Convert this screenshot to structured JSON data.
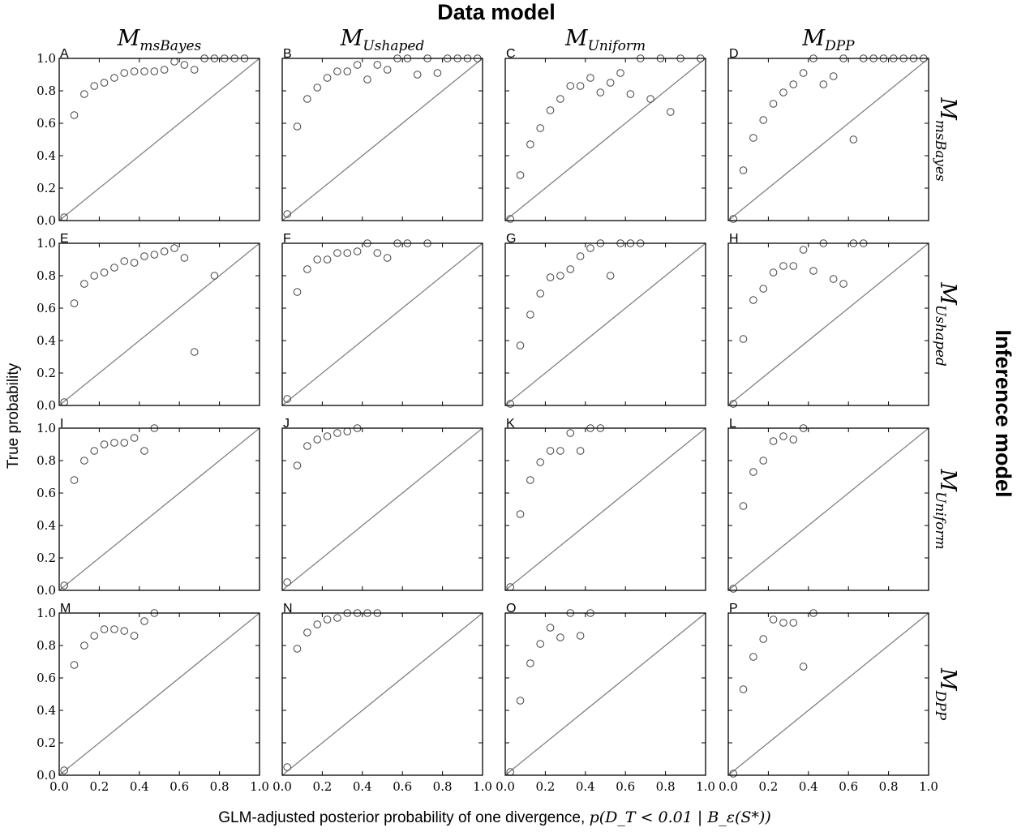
{
  "figure": {
    "col_header": "Data model",
    "row_header": "Inference model",
    "ylabel": "True probability",
    "xlabel_prefix": "GLM-adjusted posterior probability of one divergence, ",
    "xlabel_math": "p(D_T < 0.01 | B_ε(S*))",
    "column_models": [
      {
        "main": "M",
        "sub": "msBayes"
      },
      {
        "main": "M",
        "sub": "Ushaped"
      },
      {
        "main": "M",
        "sub": "Uniform"
      },
      {
        "main": "M",
        "sub": "DPP"
      }
    ],
    "row_models": [
      {
        "main": "M",
        "sub": "msBayes"
      },
      {
        "main": "M",
        "sub": "Ushaped"
      },
      {
        "main": "M",
        "sub": "Uniform"
      },
      {
        "main": "M",
        "sub": "DPP"
      }
    ],
    "x_tick_labels": [
      "0.0",
      "0.2",
      "0.4",
      "0.6",
      "0.8",
      "1.0"
    ],
    "y_tick_labels": [
      "0.0",
      "0.2",
      "0.4",
      "0.6",
      "0.8",
      "1.0"
    ],
    "colors": {
      "reference_line": "#808080",
      "marker": "#444444",
      "axes": "#000000"
    }
  },
  "chart_data": [
    {
      "panel": "A",
      "type": "scatter",
      "xlim": [
        0,
        1
      ],
      "ylim": [
        0,
        1
      ],
      "reference_line": "y = x",
      "x": [
        0.025,
        0.075,
        0.125,
        0.175,
        0.225,
        0.275,
        0.325,
        0.375,
        0.425,
        0.475,
        0.525,
        0.575,
        0.625,
        0.675,
        0.725,
        0.775,
        0.825,
        0.875,
        0.925
      ],
      "y": [
        0.02,
        0.65,
        0.78,
        0.83,
        0.85,
        0.88,
        0.91,
        0.92,
        0.92,
        0.92,
        0.93,
        0.98,
        0.96,
        0.93,
        1.0,
        1.0,
        1.0,
        1.0,
        1.0
      ]
    },
    {
      "panel": "B",
      "type": "scatter",
      "xlim": [
        0,
        1
      ],
      "ylim": [
        0,
        1
      ],
      "reference_line": "y = x",
      "x": [
        0.025,
        0.075,
        0.125,
        0.175,
        0.225,
        0.275,
        0.325,
        0.375,
        0.425,
        0.475,
        0.525,
        0.575,
        0.625,
        0.675,
        0.725,
        0.775,
        0.825,
        0.875,
        0.925,
        0.975
      ],
      "y": [
        0.04,
        0.58,
        0.75,
        0.82,
        0.88,
        0.92,
        0.92,
        0.96,
        0.87,
        0.96,
        0.93,
        1.0,
        1.0,
        0.9,
        1.0,
        0.91,
        1.0,
        1.0,
        1.0,
        1.0
      ]
    },
    {
      "panel": "C",
      "type": "scatter",
      "xlim": [
        0,
        1
      ],
      "ylim": [
        0,
        1
      ],
      "reference_line": "y = x",
      "x": [
        0.025,
        0.075,
        0.125,
        0.175,
        0.225,
        0.275,
        0.325,
        0.375,
        0.425,
        0.475,
        0.525,
        0.575,
        0.625,
        0.675,
        0.725,
        0.775,
        0.825,
        0.875,
        0.975
      ],
      "y": [
        0.01,
        0.28,
        0.47,
        0.57,
        0.68,
        0.75,
        0.83,
        0.83,
        0.88,
        0.79,
        0.85,
        0.91,
        0.78,
        1.0,
        0.75,
        1.0,
        0.67,
        1.0,
        1.0
      ]
    },
    {
      "panel": "D",
      "type": "scatter",
      "xlim": [
        0,
        1
      ],
      "ylim": [
        0,
        1
      ],
      "reference_line": "y = x",
      "x": [
        0.025,
        0.075,
        0.125,
        0.175,
        0.225,
        0.275,
        0.325,
        0.375,
        0.425,
        0.475,
        0.525,
        0.575,
        0.625,
        0.675,
        0.725,
        0.775,
        0.825,
        0.875,
        0.925,
        0.975
      ],
      "y": [
        0.01,
        0.31,
        0.51,
        0.62,
        0.72,
        0.79,
        0.84,
        0.91,
        1.0,
        0.84,
        0.89,
        1.0,
        0.5,
        1.0,
        1.0,
        1.0,
        1.0,
        1.0,
        1.0,
        1.0
      ]
    },
    {
      "panel": "E",
      "type": "scatter",
      "xlim": [
        0,
        1
      ],
      "ylim": [
        0,
        1
      ],
      "reference_line": "y = x",
      "x": [
        0.025,
        0.075,
        0.125,
        0.175,
        0.225,
        0.275,
        0.325,
        0.375,
        0.425,
        0.475,
        0.525,
        0.575,
        0.625,
        0.675,
        0.775
      ],
      "y": [
        0.02,
        0.63,
        0.75,
        0.8,
        0.82,
        0.85,
        0.89,
        0.88,
        0.92,
        0.93,
        0.95,
        0.97,
        0.91,
        0.33,
        0.8
      ]
    },
    {
      "panel": "F",
      "type": "scatter",
      "xlim": [
        0,
        1
      ],
      "ylim": [
        0,
        1
      ],
      "reference_line": "y = x",
      "x": [
        0.025,
        0.075,
        0.125,
        0.175,
        0.225,
        0.275,
        0.325,
        0.375,
        0.425,
        0.475,
        0.525,
        0.575,
        0.625,
        0.725
      ],
      "y": [
        0.04,
        0.7,
        0.84,
        0.9,
        0.9,
        0.94,
        0.94,
        0.95,
        1.0,
        0.94,
        0.91,
        1.0,
        1.0,
        1.0
      ]
    },
    {
      "panel": "G",
      "type": "scatter",
      "xlim": [
        0,
        1
      ],
      "ylim": [
        0,
        1
      ],
      "reference_line": "y = x",
      "x": [
        0.025,
        0.075,
        0.125,
        0.175,
        0.225,
        0.275,
        0.325,
        0.375,
        0.425,
        0.475,
        0.525,
        0.575,
        0.625,
        0.675
      ],
      "y": [
        0.01,
        0.37,
        0.56,
        0.69,
        0.79,
        0.8,
        0.84,
        0.92,
        0.97,
        1.0,
        0.8,
        1.0,
        1.0,
        1.0
      ]
    },
    {
      "panel": "H",
      "type": "scatter",
      "xlim": [
        0,
        1
      ],
      "ylim": [
        0,
        1
      ],
      "reference_line": "y = x",
      "x": [
        0.025,
        0.075,
        0.125,
        0.175,
        0.225,
        0.275,
        0.325,
        0.375,
        0.425,
        0.475,
        0.525,
        0.575,
        0.625,
        0.675
      ],
      "y": [
        0.01,
        0.41,
        0.65,
        0.72,
        0.82,
        0.86,
        0.86,
        0.96,
        0.83,
        1.0,
        0.78,
        0.75,
        1.0,
        1.0
      ]
    },
    {
      "panel": "I",
      "type": "scatter",
      "xlim": [
        0,
        1
      ],
      "ylim": [
        0,
        1
      ],
      "reference_line": "y = x",
      "x": [
        0.025,
        0.075,
        0.125,
        0.175,
        0.225,
        0.275,
        0.325,
        0.375,
        0.425,
        0.475
      ],
      "y": [
        0.03,
        0.68,
        0.8,
        0.86,
        0.9,
        0.91,
        0.91,
        0.94,
        0.86,
        1.0
      ]
    },
    {
      "panel": "J",
      "type": "scatter",
      "xlim": [
        0,
        1
      ],
      "ylim": [
        0,
        1
      ],
      "reference_line": "y = x",
      "x": [
        0.025,
        0.075,
        0.125,
        0.175,
        0.225,
        0.275,
        0.325,
        0.375
      ],
      "y": [
        0.05,
        0.77,
        0.89,
        0.93,
        0.95,
        0.97,
        0.98,
        1.0
      ]
    },
    {
      "panel": "K",
      "type": "scatter",
      "xlim": [
        0,
        1
      ],
      "ylim": [
        0,
        1
      ],
      "reference_line": "y = x",
      "x": [
        0.025,
        0.075,
        0.125,
        0.175,
        0.225,
        0.275,
        0.325,
        0.375,
        0.425,
        0.475
      ],
      "y": [
        0.02,
        0.47,
        0.68,
        0.79,
        0.86,
        0.86,
        0.97,
        0.86,
        1.0,
        1.0
      ]
    },
    {
      "panel": "L",
      "type": "scatter",
      "xlim": [
        0,
        1
      ],
      "ylim": [
        0,
        1
      ],
      "reference_line": "y = x",
      "x": [
        0.025,
        0.075,
        0.125,
        0.175,
        0.225,
        0.275,
        0.325,
        0.375
      ],
      "y": [
        0.01,
        0.52,
        0.73,
        0.8,
        0.92,
        0.95,
        0.93,
        1.0
      ]
    },
    {
      "panel": "M",
      "type": "scatter",
      "xlim": [
        0,
        1
      ],
      "ylim": [
        0,
        1
      ],
      "reference_line": "y = x",
      "x": [
        0.025,
        0.075,
        0.125,
        0.175,
        0.225,
        0.275,
        0.325,
        0.375,
        0.425,
        0.475
      ],
      "y": [
        0.03,
        0.68,
        0.8,
        0.86,
        0.9,
        0.9,
        0.89,
        0.86,
        0.95,
        1.0
      ]
    },
    {
      "panel": "N",
      "type": "scatter",
      "xlim": [
        0,
        1
      ],
      "ylim": [
        0,
        1
      ],
      "reference_line": "y = x",
      "x": [
        0.025,
        0.075,
        0.125,
        0.175,
        0.225,
        0.275,
        0.325,
        0.375,
        0.425,
        0.475
      ],
      "y": [
        0.05,
        0.78,
        0.88,
        0.93,
        0.96,
        0.97,
        1.0,
        1.0,
        1.0,
        1.0
      ]
    },
    {
      "panel": "O",
      "type": "scatter",
      "xlim": [
        0,
        1
      ],
      "ylim": [
        0,
        1
      ],
      "reference_line": "y = x",
      "x": [
        0.025,
        0.075,
        0.125,
        0.175,
        0.225,
        0.275,
        0.325,
        0.375,
        0.425
      ],
      "y": [
        0.02,
        0.46,
        0.69,
        0.81,
        0.91,
        0.85,
        1.0,
        0.86,
        1.0
      ]
    },
    {
      "panel": "P",
      "type": "scatter",
      "xlim": [
        0,
        1
      ],
      "ylim": [
        0,
        1
      ],
      "reference_line": "y = x",
      "x": [
        0.025,
        0.075,
        0.125,
        0.175,
        0.225,
        0.275,
        0.325,
        0.375,
        0.425
      ],
      "y": [
        0.01,
        0.53,
        0.73,
        0.84,
        0.96,
        0.94,
        0.94,
        0.67,
        1.0
      ]
    }
  ]
}
